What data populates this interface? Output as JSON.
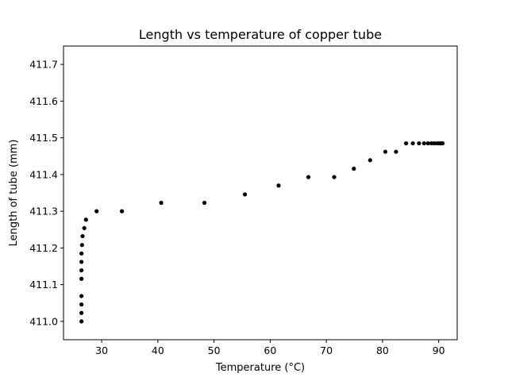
{
  "chart_data": {
    "type": "scatter",
    "title": "Length vs temperature of copper tube",
    "xlabel": "Temperature (°C)",
    "ylabel": "Length of tube (mm)",
    "xlim": [
      23.2,
      93.3
    ],
    "ylim": [
      410.95,
      411.75
    ],
    "xticks": [
      30,
      40,
      50,
      60,
      70,
      80,
      90
    ],
    "xtick_labels": [
      "30",
      "40",
      "50",
      "60",
      "70",
      "80",
      "90"
    ],
    "yticks": [
      411.0,
      411.1,
      411.2,
      411.3,
      411.4,
      411.5,
      411.6,
      411.7
    ],
    "ytick_labels": [
      "411.0",
      "411.1",
      "411.2",
      "411.3",
      "411.4",
      "411.5",
      "411.6",
      "411.7"
    ],
    "grid": false,
    "legend": "none",
    "marker_color": "#000000",
    "points": [
      {
        "x": 26.4,
        "y": 411.0
      },
      {
        "x": 26.4,
        "y": 411.023
      },
      {
        "x": 26.4,
        "y": 411.046
      },
      {
        "x": 26.4,
        "y": 411.069
      },
      {
        "x": 26.4,
        "y": 411.116
      },
      {
        "x": 26.4,
        "y": 411.139
      },
      {
        "x": 26.4,
        "y": 411.162
      },
      {
        "x": 26.4,
        "y": 411.185
      },
      {
        "x": 26.5,
        "y": 411.208
      },
      {
        "x": 26.6,
        "y": 411.232
      },
      {
        "x": 26.9,
        "y": 411.254
      },
      {
        "x": 27.2,
        "y": 411.277
      },
      {
        "x": 29.1,
        "y": 411.3
      },
      {
        "x": 33.6,
        "y": 411.3
      },
      {
        "x": 40.6,
        "y": 411.323
      },
      {
        "x": 48.3,
        "y": 411.323
      },
      {
        "x": 55.5,
        "y": 411.346
      },
      {
        "x": 61.5,
        "y": 411.37
      },
      {
        "x": 66.8,
        "y": 411.393
      },
      {
        "x": 71.4,
        "y": 411.393
      },
      {
        "x": 74.9,
        "y": 411.416
      },
      {
        "x": 77.8,
        "y": 411.439
      },
      {
        "x": 80.5,
        "y": 411.462
      },
      {
        "x": 82.4,
        "y": 411.462
      },
      {
        "x": 84.2,
        "y": 411.485
      },
      {
        "x": 85.4,
        "y": 411.485
      },
      {
        "x": 86.5,
        "y": 411.485
      },
      {
        "x": 87.4,
        "y": 411.485
      },
      {
        "x": 88.1,
        "y": 411.485
      },
      {
        "x": 88.7,
        "y": 411.485
      },
      {
        "x": 89.2,
        "y": 411.485
      },
      {
        "x": 89.7,
        "y": 411.485
      },
      {
        "x": 90.1,
        "y": 411.485
      },
      {
        "x": 90.4,
        "y": 411.485
      },
      {
        "x": 90.7,
        "y": 411.485
      }
    ]
  }
}
